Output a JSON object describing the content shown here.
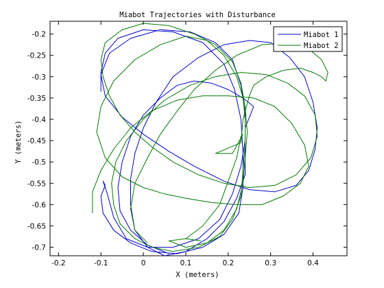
{
  "chart_data": {
    "type": "line",
    "title": "Miabot Trajectories with Disturbance",
    "xlabel": "X (meters)",
    "ylabel": "Y (meters)",
    "xlim": [
      -0.22,
      0.48
    ],
    "ylim": [
      -0.72,
      -0.17
    ],
    "xticks": [
      -0.2,
      -0.1,
      0,
      0.1,
      0.2,
      0.3,
      0.4
    ],
    "xtick_labels": [
      "-0.2",
      "-0.1",
      "0",
      "0.1",
      "0.2",
      "0.3",
      "0.4"
    ],
    "yticks": [
      -0.7,
      -0.65,
      -0.6,
      -0.55,
      -0.5,
      -0.45,
      -0.4,
      -0.35,
      -0.3,
      -0.25,
      -0.2
    ],
    "ytick_labels": [
      "-0.7",
      "-0.65",
      "-0.6",
      "-0.55",
      "-0.5",
      "-0.45",
      "-0.4",
      "-0.35",
      "-0.3",
      "-0.25",
      "-0.2"
    ],
    "grid": false,
    "legend": "top-right",
    "series": [
      {
        "name": "Miabot 1",
        "color": "#0000c8",
        "points": [
          [
            -0.1,
            -0.335
          ],
          [
            -0.1,
            -0.29
          ],
          [
            -0.09,
            -0.245
          ],
          [
            -0.06,
            -0.21
          ],
          [
            0.0,
            -0.19
          ],
          [
            0.07,
            -0.195
          ],
          [
            0.14,
            -0.22
          ],
          [
            0.19,
            -0.27
          ],
          [
            0.215,
            -0.33
          ],
          [
            0.23,
            -0.4
          ],
          [
            0.235,
            -0.48
          ],
          [
            0.235,
            -0.56
          ],
          [
            0.225,
            -0.62
          ],
          [
            0.19,
            -0.67
          ],
          [
            0.14,
            -0.7
          ],
          [
            0.08,
            -0.715
          ],
          [
            0.02,
            -0.71
          ],
          [
            -0.03,
            -0.69
          ],
          [
            -0.07,
            -0.66
          ],
          [
            -0.095,
            -0.62
          ],
          [
            -0.1,
            -0.58
          ],
          [
            -0.09,
            -0.555
          ],
          [
            -0.095,
            -0.545
          ],
          [
            -0.085,
            -0.575
          ],
          [
            -0.07,
            -0.63
          ],
          [
            -0.04,
            -0.68
          ],
          [
            0.01,
            -0.7
          ],
          [
            0.07,
            -0.7
          ],
          [
            0.13,
            -0.68
          ],
          [
            0.18,
            -0.635
          ],
          [
            0.21,
            -0.575
          ],
          [
            0.23,
            -0.51
          ],
          [
            0.24,
            -0.45
          ],
          [
            0.24,
            -0.385
          ],
          [
            0.23,
            -0.32
          ],
          [
            0.21,
            -0.26
          ],
          [
            0.17,
            -0.22
          ],
          [
            0.11,
            -0.195
          ],
          [
            0.04,
            -0.19
          ],
          [
            -0.03,
            -0.21
          ],
          [
            -0.08,
            -0.245
          ],
          [
            -0.1,
            -0.295
          ],
          [
            -0.09,
            -0.345
          ],
          [
            -0.05,
            -0.395
          ],
          [
            0.0,
            -0.435
          ],
          [
            0.06,
            -0.475
          ],
          [
            0.12,
            -0.51
          ],
          [
            0.19,
            -0.545
          ],
          [
            0.25,
            -0.565
          ],
          [
            0.31,
            -0.57
          ],
          [
            0.36,
            -0.555
          ],
          [
            0.39,
            -0.52
          ],
          [
            0.405,
            -0.47
          ],
          [
            0.41,
            -0.42
          ],
          [
            0.4,
            -0.36
          ],
          [
            0.38,
            -0.3
          ],
          [
            0.345,
            -0.255
          ],
          [
            0.3,
            -0.22
          ],
          [
            0.25,
            -0.215
          ],
          [
            0.19,
            -0.225
          ],
          [
            0.13,
            -0.255
          ],
          [
            0.07,
            -0.3
          ],
          [
            0.03,
            -0.36
          ],
          [
            0.0,
            -0.42
          ],
          [
            -0.02,
            -0.48
          ],
          [
            -0.03,
            -0.54
          ],
          [
            -0.03,
            -0.6
          ],
          [
            -0.02,
            -0.66
          ],
          [
            0.01,
            -0.7
          ],
          [
            0.05,
            -0.72
          ],
          [
            0.1,
            -0.71
          ],
          [
            0.15,
            -0.68
          ],
          [
            0.19,
            -0.64
          ],
          [
            0.22,
            -0.585
          ],
          [
            0.24,
            -0.53
          ],
          [
            0.24,
            -0.47
          ],
          [
            0.24,
            -0.42
          ],
          [
            0.26,
            -0.37
          ],
          [
            0.235,
            -0.35
          ],
          [
            0.2,
            -0.33
          ],
          [
            0.16,
            -0.315
          ],
          [
            0.12,
            -0.31
          ],
          [
            0.08,
            -0.32
          ],
          [
            0.04,
            -0.35
          ],
          [
            0.0,
            -0.39
          ],
          [
            -0.03,
            -0.44
          ],
          [
            -0.05,
            -0.5
          ],
          [
            -0.06,
            -0.56
          ],
          [
            -0.055,
            -0.615
          ],
          [
            -0.03,
            -0.66
          ],
          [
            0.01,
            -0.695
          ],
          [
            0.06,
            -0.715
          ]
        ]
      },
      {
        "name": "Miabot 2",
        "color": "#007800",
        "points": [
          [
            -0.12,
            -0.62
          ],
          [
            -0.12,
            -0.57
          ],
          [
            -0.1,
            -0.52
          ],
          [
            -0.07,
            -0.47
          ],
          [
            -0.03,
            -0.42
          ],
          [
            0.02,
            -0.38
          ],
          [
            0.08,
            -0.355
          ],
          [
            0.14,
            -0.345
          ],
          [
            0.2,
            -0.345
          ],
          [
            0.26,
            -0.35
          ],
          [
            0.31,
            -0.37
          ],
          [
            0.35,
            -0.41
          ],
          [
            0.38,
            -0.46
          ],
          [
            0.39,
            -0.51
          ],
          [
            0.37,
            -0.55
          ],
          [
            0.33,
            -0.58
          ],
          [
            0.28,
            -0.6
          ],
          [
            0.22,
            -0.6
          ],
          [
            0.16,
            -0.595
          ],
          [
            0.1,
            -0.585
          ],
          [
            0.05,
            -0.575
          ],
          [
            0.0,
            -0.56
          ],
          [
            -0.05,
            -0.535
          ],
          [
            -0.09,
            -0.49
          ],
          [
            -0.11,
            -0.43
          ],
          [
            -0.1,
            -0.37
          ],
          [
            -0.07,
            -0.31
          ],
          [
            -0.02,
            -0.26
          ],
          [
            0.04,
            -0.225
          ],
          [
            0.1,
            -0.205
          ],
          [
            0.15,
            -0.215
          ],
          [
            0.19,
            -0.25
          ],
          [
            0.22,
            -0.3
          ],
          [
            0.235,
            -0.35
          ],
          [
            0.24,
            -0.4
          ],
          [
            0.24,
            -0.46
          ],
          [
            0.235,
            -0.52
          ],
          [
            0.23,
            -0.58
          ],
          [
            0.21,
            -0.635
          ],
          [
            0.18,
            -0.675
          ],
          [
            0.13,
            -0.7
          ],
          [
            0.07,
            -0.71
          ],
          [
            0.02,
            -0.7
          ],
          [
            -0.02,
            -0.68
          ],
          [
            -0.055,
            -0.645
          ],
          [
            -0.07,
            -0.6
          ],
          [
            -0.075,
            -0.55
          ],
          [
            -0.065,
            -0.5
          ],
          [
            -0.04,
            -0.45
          ],
          [
            0.0,
            -0.4
          ],
          [
            0.05,
            -0.355
          ],
          [
            0.11,
            -0.32
          ],
          [
            0.17,
            -0.3
          ],
          [
            0.23,
            -0.29
          ],
          [
            0.29,
            -0.295
          ],
          [
            0.34,
            -0.315
          ],
          [
            0.38,
            -0.345
          ],
          [
            0.405,
            -0.39
          ],
          [
            0.41,
            -0.44
          ],
          [
            0.395,
            -0.49
          ],
          [
            0.36,
            -0.53
          ],
          [
            0.31,
            -0.555
          ],
          [
            0.25,
            -0.56
          ],
          [
            0.19,
            -0.55
          ],
          [
            0.13,
            -0.53
          ],
          [
            0.07,
            -0.5
          ],
          [
            0.02,
            -0.465
          ],
          [
            -0.02,
            -0.43
          ],
          [
            -0.055,
            -0.39
          ],
          [
            -0.08,
            -0.345
          ],
          [
            -0.095,
            -0.3
          ],
          [
            -0.1,
            -0.26
          ],
          [
            -0.09,
            -0.22
          ],
          [
            -0.05,
            -0.19
          ],
          [
            0.0,
            -0.175
          ],
          [
            0.06,
            -0.18
          ],
          [
            0.12,
            -0.2
          ],
          [
            0.17,
            -0.225
          ],
          [
            0.21,
            -0.265
          ],
          [
            0.23,
            -0.315
          ],
          [
            0.24,
            -0.37
          ],
          [
            0.245,
            -0.43
          ],
          [
            0.24,
            -0.49
          ],
          [
            0.235,
            -0.55
          ],
          [
            0.22,
            -0.61
          ],
          [
            0.19,
            -0.66
          ],
          [
            0.15,
            -0.69
          ],
          [
            0.1,
            -0.7
          ],
          [
            0.06,
            -0.685
          ],
          [
            0.1,
            -0.68
          ],
          [
            0.135,
            -0.685
          ],
          [
            0.1,
            -0.68
          ],
          [
            0.14,
            -0.65
          ],
          [
            0.18,
            -0.6
          ],
          [
            0.2,
            -0.545
          ],
          [
            0.22,
            -0.49
          ],
          [
            0.23,
            -0.44
          ],
          [
            0.235,
            -0.435
          ],
          [
            0.21,
            -0.48
          ],
          [
            0.17,
            -0.48
          ],
          [
            0.23,
            -0.455
          ],
          [
            0.235,
            -0.4
          ],
          [
            0.25,
            -0.345
          ],
          [
            0.26,
            -0.32
          ],
          [
            0.29,
            -0.3
          ],
          [
            0.33,
            -0.285
          ],
          [
            0.37,
            -0.28
          ],
          [
            0.4,
            -0.29
          ],
          [
            0.42,
            -0.3
          ],
          [
            0.43,
            -0.31
          ],
          [
            0.435,
            -0.29
          ],
          [
            0.42,
            -0.26
          ],
          [
            0.39,
            -0.235
          ],
          [
            0.34,
            -0.22
          ],
          [
            0.28,
            -0.225
          ],
          [
            0.22,
            -0.25
          ],
          [
            0.17,
            -0.285
          ],
          [
            0.12,
            -0.33
          ],
          [
            0.08,
            -0.38
          ],
          [
            0.04,
            -0.435
          ],
          [
            0.01,
            -0.49
          ],
          [
            -0.02,
            -0.55
          ],
          [
            -0.03,
            -0.61
          ],
          [
            -0.02,
            -0.66
          ],
          [
            0.01,
            -0.69
          ]
        ]
      }
    ]
  }
}
